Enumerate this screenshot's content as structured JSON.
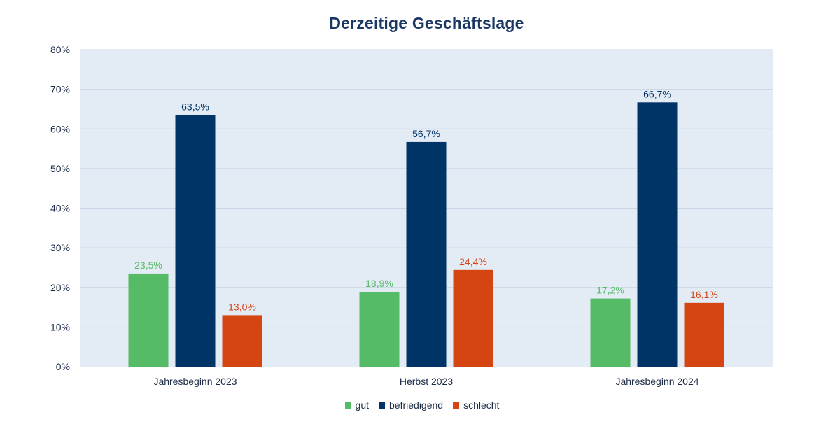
{
  "chart_data": {
    "type": "bar",
    "title": "Derzeitige Geschäftslage",
    "categories": [
      "Jahresbeginn 2023",
      "Herbst 2023",
      "Jahresbeginn 2024"
    ],
    "series": [
      {
        "name": "gut",
        "color": "#55bb66",
        "values": [
          23.5,
          18.9,
          17.2
        ],
        "labels": [
          "23,5%",
          "18,9%",
          "17,2%"
        ]
      },
      {
        "name": "befriedigend",
        "color": "#003366",
        "values": [
          63.5,
          56.7,
          66.7
        ],
        "labels": [
          "63,5%",
          "56,7%",
          "66,7%"
        ]
      },
      {
        "name": "schlecht",
        "color": "#d44512",
        "values": [
          13.0,
          24.4,
          16.1
        ],
        "labels": [
          "13,0%",
          "24,4%",
          "16,1%"
        ]
      }
    ],
    "ylim": [
      0,
      80
    ],
    "yticks": [
      0,
      10,
      20,
      30,
      40,
      50,
      60,
      70,
      80
    ],
    "ytick_labels": [
      "0%",
      "10%",
      "20%",
      "30%",
      "40%",
      "50%",
      "60%",
      "70%",
      "80%"
    ],
    "xlabel": "",
    "ylabel": "",
    "grid": true,
    "legend_position": "bottom-center",
    "plot_background": "#e3ebf4",
    "gridline_color": "#c8d5e4"
  }
}
